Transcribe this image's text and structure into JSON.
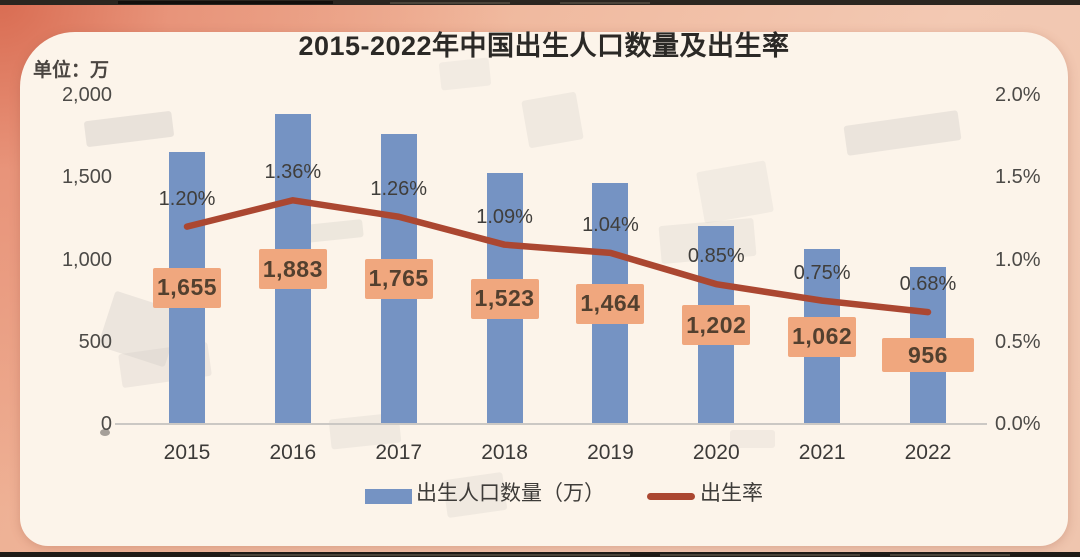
{
  "chart_data": {
    "type": "bar",
    "title": "2015-2022年中国出生人口数量及出生率",
    "unit_label": "单位：万",
    "categories": [
      "2015",
      "2016",
      "2017",
      "2018",
      "2019",
      "2020",
      "2021",
      "2022"
    ],
    "series": [
      {
        "name": "出生人口数量（万）",
        "type": "bar",
        "color": "#7593c3",
        "values": [
          1655,
          1883,
          1765,
          1523,
          1464,
          1202,
          1062,
          956
        ],
        "labels": [
          "1,655",
          "1,883",
          "1,765",
          "1,523",
          "1,464",
          "1,202",
          "1,062",
          "956"
        ],
        "label_box_color": "#f0a77e",
        "label_text_color": "#53402f"
      },
      {
        "name": "出生率",
        "type": "line",
        "color": "#ab4731",
        "values": [
          1.2,
          1.36,
          1.26,
          1.09,
          1.04,
          0.85,
          0.75,
          0.68
        ],
        "labels": [
          "1.20%",
          "1.36%",
          "1.26%",
          "1.09%",
          "1.04%",
          "0.85%",
          "0.75%",
          "0.68%"
        ]
      }
    ],
    "left_axis": {
      "title": "单位：万",
      "min": 0,
      "max": 2000,
      "tick_values": [
        2000,
        1500,
        1000,
        500,
        0
      ],
      "ticks": [
        "2,000",
        "1,500",
        "1,000",
        "500",
        "0"
      ]
    },
    "right_axis": {
      "min": 0,
      "max": 2.0,
      "tick_values": [
        2.0,
        1.5,
        1.0,
        0.5,
        0.0
      ],
      "ticks": [
        "2.0%",
        "1.5%",
        "1.0%",
        "0.5%",
        "0.0%"
      ]
    },
    "legend": {
      "position": "bottom",
      "items": [
        {
          "label": "出生人口数量（万）",
          "swatch": "bar",
          "color": "#7593c3"
        },
        {
          "label": "出生率",
          "swatch": "line",
          "color": "#ab4731"
        }
      ]
    },
    "grid": false,
    "background": "#fcf4ea",
    "frame_color": "#f0b89d"
  }
}
